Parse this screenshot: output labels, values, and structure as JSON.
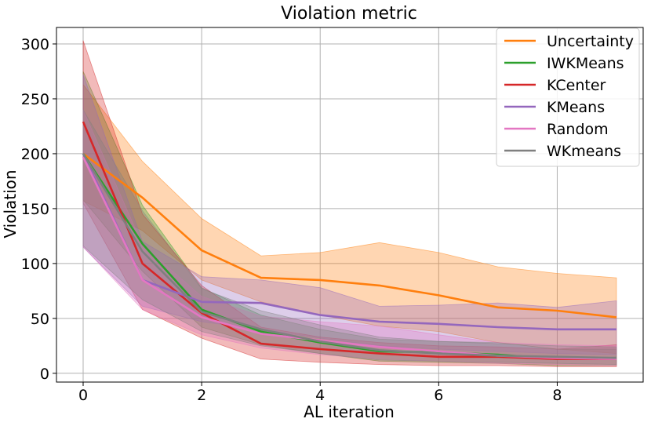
{
  "chart_data": {
    "type": "line",
    "title": "Violation metric",
    "xlabel": "AL iteration",
    "ylabel": "Violation",
    "xlim": [
      -0.45,
      9.45
    ],
    "ylim": [
      -8,
      315
    ],
    "xticks": [
      0,
      2,
      4,
      6,
      8
    ],
    "yticks": [
      0,
      50,
      100,
      150,
      200,
      250,
      300
    ],
    "xtick_labels": [
      "0",
      "2",
      "4",
      "6",
      "8"
    ],
    "ytick_labels": [
      "0",
      "50",
      "100",
      "150",
      "200",
      "250",
      "300"
    ],
    "grid": true,
    "legend_position": "top-right",
    "x": [
      0,
      1,
      2,
      3,
      4,
      5,
      6,
      7,
      8,
      9
    ],
    "series": [
      {
        "name": "Uncertainty",
        "color": "#ff7f0e",
        "values": [
          200,
          160,
          112,
          87,
          85,
          80,
          71,
          60,
          57,
          51
        ],
        "lower": [
          157,
          130,
          85,
          65,
          53,
          43,
          38,
          28,
          22,
          18
        ],
        "upper": [
          263,
          193,
          141,
          107,
          110,
          119,
          110,
          97,
          91,
          87
        ]
      },
      {
        "name": "IWKMeans",
        "color": "#2ca02c",
        "values": [
          200,
          118,
          58,
          38,
          28,
          20,
          19,
          17,
          13,
          14
        ],
        "lower": [
          158,
          93,
          42,
          26,
          18,
          11,
          10,
          9,
          7,
          7
        ],
        "upper": [
          275,
          153,
          78,
          53,
          40,
          31,
          29,
          28,
          22,
          22
        ]
      },
      {
        "name": "KCenter",
        "color": "#d62728",
        "values": [
          229,
          100,
          55,
          27,
          22,
          18,
          15,
          15,
          13,
          13
        ],
        "lower": [
          155,
          58,
          32,
          13,
          10,
          8,
          7,
          7,
          6,
          6
        ],
        "upper": [
          303,
          145,
          80,
          42,
          33,
          28,
          25,
          24,
          22,
          26
        ]
      },
      {
        "name": "KMeans",
        "color": "#9467bd",
        "values": [
          200,
          85,
          65,
          64,
          53,
          47,
          45,
          42,
          40,
          40
        ],
        "lower": [
          115,
          61,
          47,
          40,
          32,
          25,
          22,
          20,
          18,
          17
        ],
        "upper": [
          272,
          120,
          88,
          85,
          78,
          61,
          62,
          64,
          60,
          66
        ]
      },
      {
        "name": "Random",
        "color": "#e377c2",
        "values": [
          197,
          85,
          51,
          36,
          30,
          24,
          20,
          16,
          14,
          13
        ],
        "lower": [
          115,
          58,
          35,
          23,
          17,
          13,
          11,
          9,
          8,
          7
        ],
        "upper": [
          240,
          117,
          70,
          52,
          47,
          43,
          35,
          28,
          26,
          25
        ]
      },
      {
        "name": "WKmeans",
        "color": "#7f7f7f",
        "values": [
          200,
          111,
          56,
          40,
          29,
          21,
          18,
          16,
          15,
          14
        ],
        "lower": [
          116,
          67,
          38,
          25,
          18,
          12,
          11,
          10,
          9,
          8
        ],
        "upper": [
          240,
          148,
          77,
          57,
          44,
          33,
          29,
          27,
          25,
          24
        ]
      }
    ]
  }
}
